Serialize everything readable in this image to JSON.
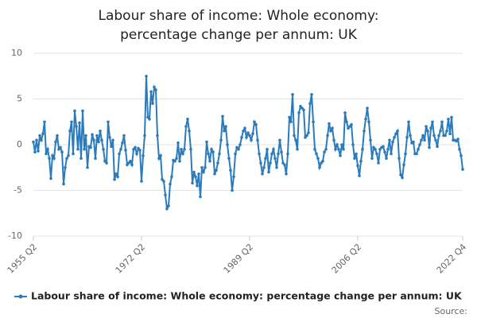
{
  "chart_data": {
    "type": "line",
    "title": "Labour share of income: Whole economy: percentage change per annum: UK",
    "source": "Source:",
    "categories": [
      "1955 Q2",
      null,
      null,
      null,
      null,
      null,
      null,
      null,
      null,
      null,
      null,
      null,
      null,
      null,
      null,
      null,
      null,
      null,
      null,
      null,
      null,
      null,
      null,
      null,
      null,
      null,
      null,
      null,
      null,
      null,
      null,
      null,
      null,
      null,
      null,
      null,
      null,
      null,
      null,
      null,
      null,
      null,
      null,
      null,
      null,
      null,
      null,
      null,
      null,
      null,
      null,
      null,
      null,
      null,
      null,
      null,
      null,
      null,
      null,
      null,
      null,
      null,
      null,
      null,
      null,
      null,
      null,
      null,
      "1972 Q2",
      null,
      null,
      null,
      null,
      null,
      null,
      null,
      null,
      null,
      null,
      null,
      null,
      null,
      null,
      null,
      null,
      null,
      null,
      null,
      null,
      null,
      null,
      null,
      null,
      null,
      null,
      null,
      null,
      null,
      null,
      null,
      null,
      null,
      null,
      null,
      null,
      null,
      null,
      null,
      null,
      null,
      null,
      null,
      null,
      null,
      null,
      null,
      null,
      null,
      null,
      null,
      null,
      null,
      null,
      null,
      null,
      null,
      null,
      null,
      null,
      null,
      null,
      null,
      null,
      null,
      null,
      null,
      "1989 Q2",
      null,
      null,
      null,
      null,
      null,
      null,
      null,
      null,
      null,
      null,
      null,
      null,
      null,
      null,
      null,
      null,
      null,
      null,
      null,
      null,
      null,
      null,
      null,
      null,
      null,
      null,
      null,
      null,
      null,
      null,
      null,
      null,
      null,
      null,
      null,
      null,
      null,
      null,
      null,
      null,
      null,
      null,
      null,
      null,
      null,
      null,
      null,
      null,
      null,
      null,
      null,
      null,
      null,
      null,
      null,
      null,
      null,
      null,
      null,
      null,
      null,
      null,
      null,
      null,
      null,
      null,
      null,
      "2006 Q2",
      null,
      null,
      null,
      null,
      null,
      null,
      null,
      null,
      null,
      null,
      null,
      null,
      null,
      null,
      null,
      null,
      null,
      null,
      null,
      null,
      null,
      null,
      null,
      null,
      null,
      null,
      null,
      null,
      null,
      null,
      null,
      null,
      null,
      null,
      null,
      null,
      null,
      null,
      null,
      null,
      null,
      null,
      null,
      null,
      null,
      null,
      null,
      null,
      null,
      null,
      null,
      null,
      null,
      null,
      null,
      null,
      null,
      null,
      null,
      null,
      null,
      null,
      null,
      null,
      null,
      "2022 Q4"
    ],
    "series": [
      {
        "name": "Labour share of income: Whole economy: percentage change per annum: UK",
        "color": "#2b7bba",
        "values": [
          0.3,
          -0.8,
          0.5,
          -0.7,
          1.0,
          0.5,
          1.2,
          2.5,
          -1.0,
          -0.5,
          -1.5,
          -3.7,
          -1.2,
          -1.5,
          0.3,
          1.0,
          -0.5,
          -0.3,
          -0.8,
          -4.3,
          -2.5,
          -1.5,
          -1.2,
          1.5,
          2.5,
          -1.0,
          3.7,
          2.0,
          -0.5,
          2.4,
          -1.5,
          3.7,
          -0.5,
          1.0,
          -2.5,
          -0.2,
          -0.3,
          1.1,
          0.5,
          -1.5,
          1.0,
          0.3,
          1.5,
          0.5,
          -0.5,
          -1.8,
          -2.0,
          2.5,
          0.8,
          -0.2,
          0.5,
          -3.8,
          -3.2,
          -3.5,
          -1.0,
          -0.5,
          0.2,
          1.0,
          -0.6,
          -2.2,
          -2.0,
          -1.8,
          -2.2,
          -0.5,
          -0.3,
          -1.0,
          -0.4,
          -0.6,
          -4.0,
          -1.2,
          1.0,
          7.5,
          3.0,
          2.8,
          5.8,
          4.5,
          6.3,
          6.0,
          1.0,
          -1.5,
          -1.2,
          -3.8,
          -4.0,
          -5.5,
          -7.0,
          -6.7,
          -4.3,
          -3.5,
          -1.7,
          -1.8,
          -1.5,
          0.2,
          -1.8,
          -0.5,
          -1.0,
          -0.5,
          2.0,
          2.8,
          1.5,
          -0.5,
          -4.2,
          -3.0,
          -3.5,
          -4.5,
          -3.2,
          -5.7,
          -2.5,
          -3.0,
          -2.5,
          0.3,
          -1.0,
          -1.8,
          -0.5,
          -0.8,
          -3.2,
          -2.8,
          -2.0,
          -1.0,
          0.5,
          3.1,
          1.5,
          2.0,
          0.0,
          -1.5,
          -2.8,
          -5.0,
          -3.5,
          -1.0,
          -0.3,
          -0.5,
          0.0,
          0.8,
          1.5,
          1.8,
          0.8,
          1.3,
          1.0,
          0.5,
          1.2,
          2.5,
          2.2,
          0.5,
          -1.0,
          -2.0,
          -3.2,
          -2.5,
          -1.5,
          -0.5,
          -3.0,
          -2.0,
          -1.0,
          -0.5,
          -1.5,
          -2.5,
          -1.0,
          0.5,
          -0.8,
          -2.0,
          -2.2,
          -3.2,
          -1.0,
          3.0,
          2.5,
          5.5,
          1.0,
          0.5,
          -0.5,
          3.5,
          4.2,
          4.0,
          3.8,
          0.8,
          1.0,
          1.3,
          4.5,
          5.5,
          2.5,
          -0.5,
          -1.0,
          -1.5,
          -2.5,
          -2.0,
          -1.8,
          -0.8,
          -0.5,
          1.0,
          2.3,
          1.5,
          1.8,
          0.5,
          -0.5,
          0.0,
          -0.5,
          -1.2,
          0.0,
          -0.5,
          3.5,
          2.5,
          1.8,
          2.0,
          2.2,
          0.0,
          -1.5,
          -1.0,
          -2.3,
          -3.4,
          -1.8,
          -0.5,
          1.5,
          2.8,
          4.0,
          2.5,
          0.5,
          -1.5,
          -0.3,
          -0.5,
          -1.0,
          -2.0,
          -0.5,
          -0.3,
          -0.2,
          -0.8,
          -1.5,
          -0.5,
          0.5,
          -1.0,
          0.3,
          0.8,
          1.2,
          1.5,
          -1.5,
          -3.3,
          -3.6,
          -2.2,
          -1.0,
          0.8,
          2.5,
          1.0,
          0.2,
          0.3,
          -1.0,
          -1.0,
          -0.5,
          0.0,
          0.5,
          1.0,
          0.5,
          2.0,
          1.5,
          -0.3,
          1.8,
          2.5,
          1.0,
          0.5,
          -0.2,
          1.0,
          1.5,
          2.5,
          1.0,
          1.0,
          1.5,
          2.8,
          1.2,
          3.0,
          0.5,
          0.5,
          0.4,
          0.6,
          -0.5,
          -1.2,
          -2.7
        ]
      }
    ],
    "ylim": [
      -10,
      10
    ],
    "yticks": [
      10,
      5,
      0,
      -5,
      -10
    ],
    "grid": true,
    "legend": "bottom"
  }
}
